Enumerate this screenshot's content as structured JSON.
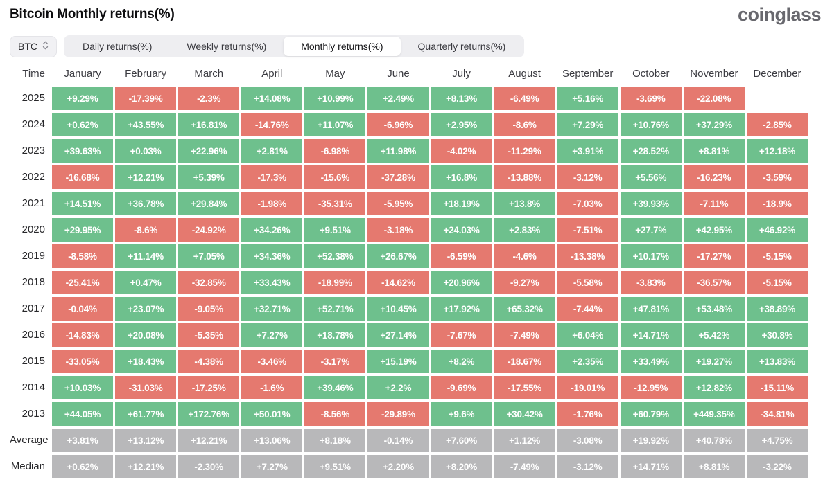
{
  "page": {
    "title": "Bitcoin Monthly returns(%)",
    "brand": "coinglass"
  },
  "controls": {
    "symbol": "BTC",
    "tabs": [
      "Daily returns(%)",
      "Weekly returns(%)",
      "Monthly returns(%)",
      "Quarterly returns(%)"
    ],
    "active_tab": "Monthly returns(%)"
  },
  "colors": {
    "positive": "#6ec08d",
    "negative": "#e5796f",
    "summary": "#b8b8ba"
  },
  "chart_data": {
    "type": "heatmap",
    "title": "Bitcoin Monthly returns(%)",
    "columns": [
      "Time",
      "January",
      "February",
      "March",
      "April",
      "May",
      "June",
      "July",
      "August",
      "September",
      "October",
      "November",
      "December"
    ],
    "rows": [
      {
        "label": "2025",
        "values": [
          "+9.29%",
          "-17.39%",
          "-2.3%",
          "+14.08%",
          "+10.99%",
          "+2.49%",
          "+8.13%",
          "-6.49%",
          "+5.16%",
          "-3.69%",
          "-22.08%",
          null
        ]
      },
      {
        "label": "2024",
        "values": [
          "+0.62%",
          "+43.55%",
          "+16.81%",
          "-14.76%",
          "+11.07%",
          "-6.96%",
          "+2.95%",
          "-8.6%",
          "+7.29%",
          "+10.76%",
          "+37.29%",
          "-2.85%"
        ]
      },
      {
        "label": "2023",
        "values": [
          "+39.63%",
          "+0.03%",
          "+22.96%",
          "+2.81%",
          "-6.98%",
          "+11.98%",
          "-4.02%",
          "-11.29%",
          "+3.91%",
          "+28.52%",
          "+8.81%",
          "+12.18%"
        ]
      },
      {
        "label": "2022",
        "values": [
          "-16.68%",
          "+12.21%",
          "+5.39%",
          "-17.3%",
          "-15.6%",
          "-37.28%",
          "+16.8%",
          "-13.88%",
          "-3.12%",
          "+5.56%",
          "-16.23%",
          "-3.59%"
        ]
      },
      {
        "label": "2021",
        "values": [
          "+14.51%",
          "+36.78%",
          "+29.84%",
          "-1.98%",
          "-35.31%",
          "-5.95%",
          "+18.19%",
          "+13.8%",
          "-7.03%",
          "+39.93%",
          "-7.11%",
          "-18.9%"
        ]
      },
      {
        "label": "2020",
        "values": [
          "+29.95%",
          "-8.6%",
          "-24.92%",
          "+34.26%",
          "+9.51%",
          "-3.18%",
          "+24.03%",
          "+2.83%",
          "-7.51%",
          "+27.7%",
          "+42.95%",
          "+46.92%"
        ]
      },
      {
        "label": "2019",
        "values": [
          "-8.58%",
          "+11.14%",
          "+7.05%",
          "+34.36%",
          "+52.38%",
          "+26.67%",
          "-6.59%",
          "-4.6%",
          "-13.38%",
          "+10.17%",
          "-17.27%",
          "-5.15%"
        ]
      },
      {
        "label": "2018",
        "values": [
          "-25.41%",
          "+0.47%",
          "-32.85%",
          "+33.43%",
          "-18.99%",
          "-14.62%",
          "+20.96%",
          "-9.27%",
          "-5.58%",
          "-3.83%",
          "-36.57%",
          "-5.15%"
        ]
      },
      {
        "label": "2017",
        "values": [
          "-0.04%",
          "+23.07%",
          "-9.05%",
          "+32.71%",
          "+52.71%",
          "+10.45%",
          "+17.92%",
          "+65.32%",
          "-7.44%",
          "+47.81%",
          "+53.48%",
          "+38.89%"
        ]
      },
      {
        "label": "2016",
        "values": [
          "-14.83%",
          "+20.08%",
          "-5.35%",
          "+7.27%",
          "+18.78%",
          "+27.14%",
          "-7.67%",
          "-7.49%",
          "+6.04%",
          "+14.71%",
          "+5.42%",
          "+30.8%"
        ]
      },
      {
        "label": "2015",
        "values": [
          "-33.05%",
          "+18.43%",
          "-4.38%",
          "-3.46%",
          "-3.17%",
          "+15.19%",
          "+8.2%",
          "-18.67%",
          "+2.35%",
          "+33.49%",
          "+19.27%",
          "+13.83%"
        ]
      },
      {
        "label": "2014",
        "values": [
          "+10.03%",
          "-31.03%",
          "-17.25%",
          "-1.6%",
          "+39.46%",
          "+2.2%",
          "-9.69%",
          "-17.55%",
          "-19.01%",
          "-12.95%",
          "+12.82%",
          "-15.11%"
        ]
      },
      {
        "label": "2013",
        "values": [
          "+44.05%",
          "+61.77%",
          "+172.76%",
          "+50.01%",
          "-8.56%",
          "-29.89%",
          "+9.6%",
          "+30.42%",
          "-1.76%",
          "+60.79%",
          "+449.35%",
          "-34.81%"
        ]
      },
      {
        "label": "Average",
        "summary": true,
        "values": [
          "+3.81%",
          "+13.12%",
          "+12.21%",
          "+13.06%",
          "+8.18%",
          "-0.14%",
          "+7.60%",
          "+1.12%",
          "-3.08%",
          "+19.92%",
          "+40.78%",
          "+4.75%"
        ]
      },
      {
        "label": "Median",
        "summary": true,
        "values": [
          "+0.62%",
          "+12.21%",
          "-2.30%",
          "+7.27%",
          "+9.51%",
          "+2.20%",
          "+8.20%",
          "-7.49%",
          "-3.12%",
          "+14.71%",
          "+8.81%",
          "-3.22%"
        ]
      }
    ]
  }
}
